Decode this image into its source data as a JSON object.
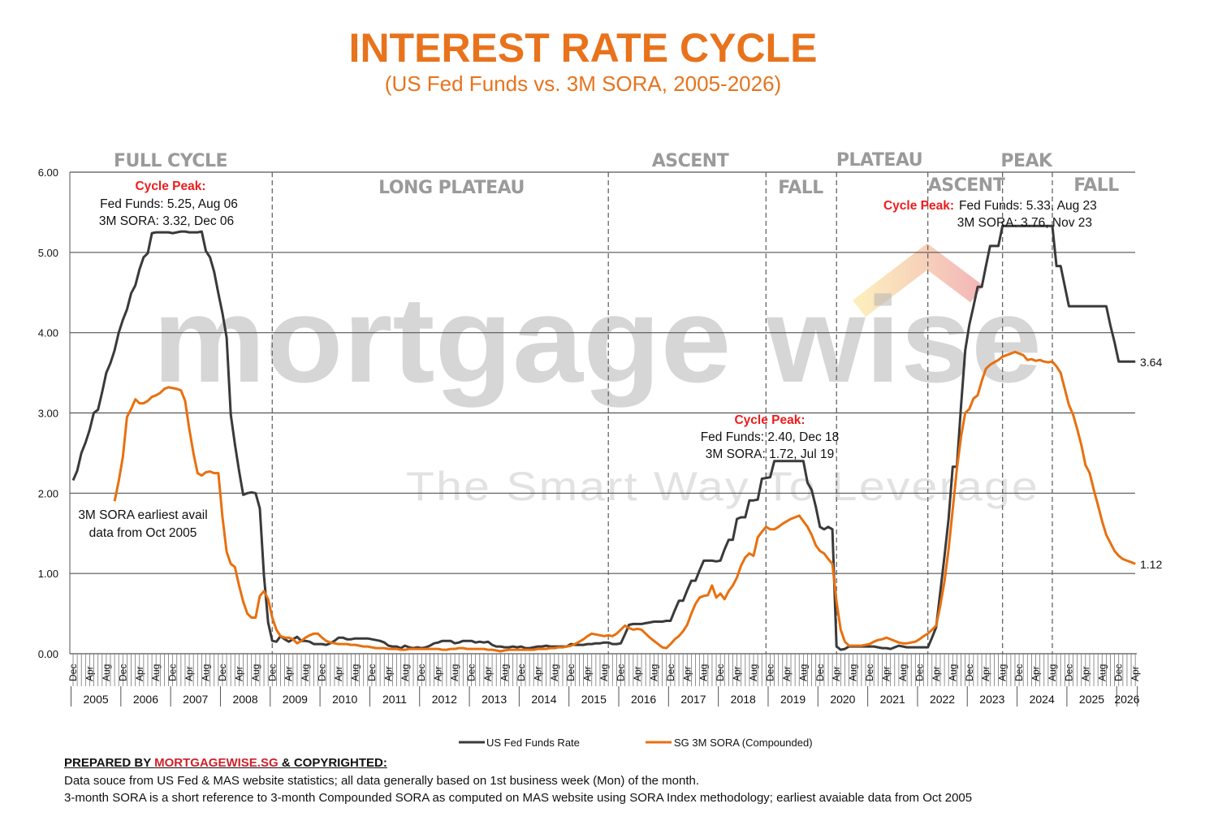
{
  "title": "INTEREST RATE CYCLE",
  "subtitle": "(US Fed Funds vs. 3M SORA, 2005-2026)",
  "phases": {
    "top": [
      {
        "label": "FULL CYCLE"
      },
      {
        "label": "ASCENT"
      },
      {
        "label": "PLATEAU"
      },
      {
        "label": "PEAK"
      }
    ],
    "bottom": [
      {
        "label": "LONG PLATEAU"
      },
      {
        "label": "FALL"
      },
      {
        "label": "ASCENT"
      },
      {
        "label": "FALL"
      }
    ],
    "divider_dates": [
      "2008-12",
      "2015-09",
      "2018-11",
      "2020-04",
      "2022-02",
      "2023-08",
      "2024-08"
    ]
  },
  "annotations": {
    "peak1": {
      "label": "Cycle Peak:",
      "line1": "Fed Funds: 5.25, Aug 06",
      "line2": "3M SORA: 3.32, Dec 06"
    },
    "peak2": {
      "label": "Cycle Peak:",
      "line1": "Fed Funds: 2.40, Dec 18",
      "line2": "3M SORA: 1.72, Jul 19"
    },
    "peak3": {
      "label": "Cycle Peak:",
      "line1": "Fed Funds: 5.33, Aug 23",
      "line2": "3M SORA: 3.76, Nov 23"
    },
    "sora_note": {
      "line1": "3M SORA earliest avail",
      "line2": "data from Oct 2005"
    }
  },
  "watermark": {
    "brand": "mortgage wise",
    "tagline": "The Smart Way To Leverage"
  },
  "legend": {
    "fed": "US Fed Funds Rate",
    "sora": "SG 3M SORA (Compounded)"
  },
  "footer": {
    "prepared_by": "PREPARED BY ",
    "brand": "MORTGAGEWISE.SG",
    "copyright": " & COPYRIGHTED:",
    "note1": "Data souce from US Fed & MAS website statistics; all data generally based on 1st business week (Mon) of the month.",
    "note2": "3-month SORA is a short reference to 3-month Compounded SORA as computed on MAS website using SORA Index methodology; earliest avaiable data from Oct 2005"
  },
  "colors": {
    "fed": "#3a3a3a",
    "sora": "#E8700F",
    "title": "#E8731C",
    "highlight": "#EE1C1C"
  },
  "chart_data": {
    "type": "line",
    "title": "INTEREST RATE CYCLE",
    "subtitle": "(US Fed Funds vs. 3M SORA, 2005-2026)",
    "xlabel": "",
    "ylabel": "",
    "ylim": [
      0,
      6
    ],
    "y_ticks": [
      "0.00",
      "1.00",
      "2.00",
      "3.00",
      "4.00",
      "5.00",
      "6.00"
    ],
    "x_range": [
      "2004-12",
      "2026-04"
    ],
    "month_tick_labels": [
      "Dec",
      "Apr",
      "Aug"
    ],
    "year_labels": [
      "2005",
      "2006",
      "2007",
      "2008",
      "2009",
      "2010",
      "2011",
      "2012",
      "2013",
      "2014",
      "2015",
      "2016",
      "2017",
      "2018",
      "2019",
      "2020",
      "2021",
      "2022",
      "2023",
      "2024",
      "2025",
      "2026"
    ],
    "grid": true,
    "legend_position": "bottom",
    "end_labels": {
      "fed": "3.64",
      "sora": "1.12"
    },
    "series": [
      {
        "name": "US Fed Funds Rate",
        "key": "fed",
        "by_year": {
          "2004": [
            2.16
          ],
          "2005": [
            2.28,
            2.5,
            2.63,
            2.79,
            3.0,
            3.04,
            3.26,
            3.5,
            3.62,
            3.78,
            4.0,
            4.16
          ],
          "2006": [
            4.29,
            4.49,
            4.59,
            4.79,
            4.94,
            4.99,
            5.24,
            5.25,
            5.25,
            5.25,
            5.25,
            5.24
          ],
          "2007": [
            5.25,
            5.26,
            5.26,
            5.25,
            5.25,
            5.25,
            5.26,
            5.02,
            4.94,
            4.76,
            4.49,
            4.24
          ],
          "2008": [
            3.94,
            2.98,
            2.61,
            2.28,
            1.98,
            2.0,
            2.01,
            2.0,
            1.81,
            0.97,
            0.39,
            0.16
          ],
          "2009": [
            0.15,
            0.22,
            0.18,
            0.15,
            0.18,
            0.21,
            0.16,
            0.16,
            0.15,
            0.12,
            0.12,
            0.12
          ],
          "2010": [
            0.11,
            0.13,
            0.16,
            0.2,
            0.2,
            0.18,
            0.18,
            0.19,
            0.19,
            0.19,
            0.19,
            0.18
          ],
          "2011": [
            0.17,
            0.16,
            0.14,
            0.1,
            0.09,
            0.09,
            0.07,
            0.1,
            0.08,
            0.07,
            0.08,
            0.07
          ],
          "2012": [
            0.08,
            0.1,
            0.13,
            0.14,
            0.16,
            0.16,
            0.16,
            0.13,
            0.14,
            0.16,
            0.16,
            0.16
          ],
          "2013": [
            0.14,
            0.15,
            0.14,
            0.15,
            0.11,
            0.09,
            0.09,
            0.08,
            0.08,
            0.09,
            0.08,
            0.09
          ],
          "2014": [
            0.07,
            0.07,
            0.08,
            0.09,
            0.09,
            0.1,
            0.09,
            0.09,
            0.09,
            0.09,
            0.09,
            0.12
          ],
          "2015": [
            0.11,
            0.11,
            0.11,
            0.12,
            0.12,
            0.13,
            0.13,
            0.14,
            0.14,
            0.12,
            0.12,
            0.13
          ],
          "2016": [
            0.24,
            0.36,
            0.37,
            0.37,
            0.37,
            0.38,
            0.39,
            0.4,
            0.4,
            0.4,
            0.41,
            0.41
          ],
          "2017": [
            0.54,
            0.66,
            0.66,
            0.79,
            0.91,
            0.91,
            1.04,
            1.16,
            1.16,
            1.16,
            1.15,
            1.16
          ],
          "2018": [
            1.3,
            1.42,
            1.42,
            1.68,
            1.7,
            1.7,
            1.91,
            1.91,
            1.92,
            2.18,
            2.19,
            2.2
          ],
          "2019": [
            2.4,
            2.4,
            2.4,
            2.4,
            2.4,
            2.4,
            2.4,
            2.4,
            2.13,
            2.04,
            1.83,
            1.58
          ],
          "2020": [
            1.55,
            1.58,
            1.55,
            0.09,
            0.05,
            0.06,
            0.09,
            0.09,
            0.09,
            0.09,
            0.09,
            0.09
          ],
          "2021": [
            0.09,
            0.08,
            0.07,
            0.07,
            0.06,
            0.08,
            0.1,
            0.09,
            0.08,
            0.08,
            0.08,
            0.08
          ],
          "2022": [
            0.08,
            0.08,
            0.2,
            0.33,
            0.77,
            1.21,
            1.68,
            2.33,
            2.33,
            3.08,
            3.78,
            4.1
          ],
          "2023": [
            4.33,
            4.57,
            4.57,
            4.83,
            5.08,
            5.08,
            5.08,
            5.33,
            5.33,
            5.33,
            5.33,
            5.33
          ],
          "2024": [
            5.33,
            5.33,
            5.33,
            5.33,
            5.33,
            5.33,
            5.33,
            5.33,
            4.83,
            4.83,
            4.58,
            4.33
          ],
          "2025": [
            4.33,
            4.33,
            4.33,
            4.33,
            4.33,
            4.33,
            4.33,
            4.33,
            4.33,
            4.09,
            3.88,
            3.64
          ],
          "2026": [
            3.64,
            3.64,
            3.64,
            3.64
          ]
        }
      },
      {
        "name": "SG 3M SORA (Compounded)",
        "key": "sora",
        "by_year": {
          "2005": [
            1.9,
            2.15,
            2.45
          ],
          "2006": [
            2.95,
            3.05,
            3.17,
            3.12,
            3.12,
            3.15,
            3.2,
            3.22,
            3.25,
            3.3,
            3.32,
            3.31
          ],
          "2007": [
            3.3,
            3.28,
            3.15,
            2.8,
            2.5,
            2.25,
            2.22,
            2.26,
            2.27,
            2.25,
            2.25,
            1.7
          ],
          "2008": [
            1.27,
            1.12,
            1.08,
            0.85,
            0.65,
            0.5,
            0.45,
            0.45,
            0.72,
            0.78,
            0.68,
            0.45
          ],
          "2009": [
            0.3,
            0.22,
            0.2,
            0.2,
            0.18,
            0.13,
            0.16,
            0.2,
            0.23,
            0.25,
            0.25,
            0.2
          ],
          "2010": [
            0.16,
            0.14,
            0.13,
            0.12,
            0.12,
            0.12,
            0.11,
            0.11,
            0.1,
            0.09,
            0.09,
            0.08
          ],
          "2011": [
            0.07,
            0.07,
            0.07,
            0.06,
            0.06,
            0.06,
            0.05,
            0.05,
            0.06,
            0.06,
            0.06,
            0.06
          ],
          "2012": [
            0.06,
            0.06,
            0.06,
            0.06,
            0.05,
            0.05,
            0.06,
            0.06,
            0.07,
            0.07,
            0.06,
            0.06
          ],
          "2013": [
            0.06,
            0.06,
            0.06,
            0.05,
            0.05,
            0.04,
            0.03,
            0.04,
            0.05,
            0.05,
            0.05,
            0.05
          ],
          "2014": [
            0.05,
            0.05,
            0.05,
            0.06,
            0.06,
            0.06,
            0.07,
            0.07,
            0.08,
            0.08,
            0.09,
            0.1
          ],
          "2015": [
            0.12,
            0.15,
            0.18,
            0.22,
            0.25,
            0.24,
            0.23,
            0.22,
            0.23,
            0.22,
            0.25,
            0.3
          ],
          "2016": [
            0.35,
            0.32,
            0.3,
            0.31,
            0.3,
            0.25,
            0.2,
            0.16,
            0.12,
            0.08,
            0.07,
            0.12
          ],
          "2017": [
            0.18,
            0.22,
            0.28,
            0.36,
            0.5,
            0.62,
            0.7,
            0.72,
            0.73,
            0.85,
            0.7,
            0.75
          ],
          "2018": [
            0.68,
            0.78,
            0.85,
            0.95,
            1.1,
            1.2,
            1.25,
            1.22,
            1.45,
            1.52,
            1.58,
            1.55
          ],
          "2019": [
            1.55,
            1.58,
            1.62,
            1.65,
            1.68,
            1.7,
            1.72,
            1.65,
            1.58,
            1.48,
            1.35,
            1.28
          ],
          "2020": [
            1.25,
            1.18,
            1.12,
            0.65,
            0.3,
            0.15,
            0.1,
            0.1,
            0.1,
            0.1,
            0.11,
            0.12
          ],
          "2021": [
            0.15,
            0.17,
            0.18,
            0.2,
            0.18,
            0.16,
            0.14,
            0.13,
            0.13,
            0.14,
            0.15,
            0.18
          ],
          "2022": [
            0.22,
            0.25,
            0.3,
            0.35,
            0.6,
            0.9,
            1.3,
            1.8,
            2.3,
            2.7,
            3.0,
            3.05
          ],
          "2023": [
            3.18,
            3.22,
            3.4,
            3.55,
            3.6,
            3.63,
            3.66,
            3.7,
            3.72,
            3.74,
            3.76,
            3.74
          ],
          "2024": [
            3.72,
            3.66,
            3.67,
            3.65,
            3.66,
            3.64,
            3.63,
            3.64,
            3.58,
            3.5,
            3.3,
            3.1
          ],
          "2025": [
            2.98,
            2.8,
            2.6,
            2.35,
            2.25,
            2.04,
            1.85,
            1.65,
            1.48,
            1.38,
            1.28,
            1.22
          ],
          "2026": [
            1.18,
            1.16,
            1.14,
            1.12
          ]
        }
      }
    ]
  }
}
